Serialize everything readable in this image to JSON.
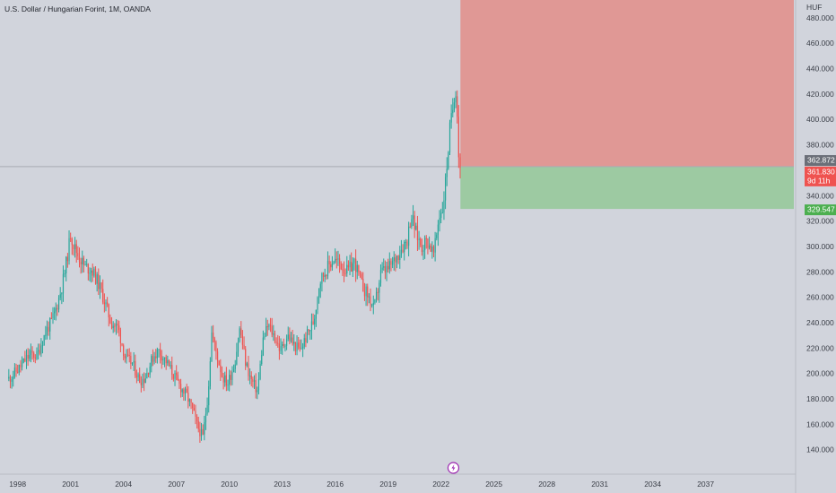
{
  "header": {
    "title": "U.S. Dollar / Hungarian Forint, 1M, OANDA",
    "currency": "HUF"
  },
  "colors": {
    "background": "#d1d4dc",
    "up": "#26a69a",
    "down": "#ef5350",
    "neutral": "#6b6f78",
    "loss_zone": "#e09895",
    "profit_zone": "#9dcaa2",
    "current_line": "#a8abb3",
    "price_tag_bg": "#6b6f78",
    "current_tag_bg": "#ef5350",
    "target_tag_bg": "#4caf50"
  },
  "icons": {
    "event": "lightning-icon"
  },
  "chart_data": {
    "type": "candlestick",
    "symbol": "USD/HUF",
    "interval": "1M",
    "source": "OANDA",
    "ylim": [
      125,
      494
    ],
    "yticks": [
      140,
      160,
      180,
      200,
      220,
      240,
      260,
      280,
      300,
      320,
      340,
      360,
      380,
      400,
      420,
      440,
      460,
      480
    ],
    "ytick_labels": [
      "140.000",
      "160.000",
      "180.000",
      "200.000",
      "220.000",
      "240.000",
      "260.000",
      "280.000",
      "300.000",
      "320.000",
      "340.000",
      "360.000",
      "380.000",
      "400.000",
      "420.000",
      "440.000",
      "460.000",
      "480.000"
    ],
    "xlim": [
      1997.0,
      2042.0
    ],
    "xticks": [
      1998,
      2001,
      2004,
      2007,
      2010,
      2013,
      2016,
      2019,
      2022,
      2025,
      2028,
      2031,
      2034,
      2037
    ],
    "xtick_labels": [
      "1998",
      "2001",
      "2004",
      "2007",
      "2010",
      "2013",
      "2016",
      "2019",
      "2022",
      "2025",
      "2028",
      "2031",
      "2034",
      "2037"
    ],
    "price_path": [
      [
        1997.5,
        196
      ],
      [
        1997.8,
        200
      ],
      [
        1998.2,
        206
      ],
      [
        1998.5,
        212
      ],
      [
        1998.8,
        215
      ],
      [
        1999.1,
        214
      ],
      [
        1999.4,
        226
      ],
      [
        1999.7,
        236
      ],
      [
        1999.9,
        240
      ],
      [
        2000.2,
        252
      ],
      [
        2000.5,
        268
      ],
      [
        2000.7,
        282
      ],
      [
        2000.9,
        300
      ],
      [
        2001.0,
        310
      ],
      [
        2001.2,
        300
      ],
      [
        2001.4,
        294
      ],
      [
        2001.8,
        284
      ],
      [
        2002.2,
        282
      ],
      [
        2002.6,
        270
      ],
      [
        2002.9,
        258
      ],
      [
        2003.3,
        240
      ],
      [
        2003.7,
        236
      ],
      [
        2004.1,
        212
      ],
      [
        2004.5,
        208
      ],
      [
        2004.9,
        195
      ],
      [
        2005.2,
        196
      ],
      [
        2005.7,
        214
      ],
      [
        2006.0,
        218
      ],
      [
        2006.4,
        210
      ],
      [
        2006.8,
        200
      ],
      [
        2007.2,
        190
      ],
      [
        2007.6,
        182
      ],
      [
        2007.9,
        172
      ],
      [
        2008.2,
        158
      ],
      [
        2008.5,
        150
      ],
      [
        2008.8,
        185
      ],
      [
        2009.0,
        232
      ],
      [
        2009.2,
        220
      ],
      [
        2009.6,
        198
      ],
      [
        2009.9,
        192
      ],
      [
        2010.3,
        208
      ],
      [
        2010.6,
        236
      ],
      [
        2010.9,
        210
      ],
      [
        2011.2,
        196
      ],
      [
        2011.6,
        186
      ],
      [
        2011.9,
        226
      ],
      [
        2012.2,
        238
      ],
      [
        2012.6,
        228
      ],
      [
        2012.9,
        218
      ],
      [
        2013.3,
        230
      ],
      [
        2013.7,
        222
      ],
      [
        2014.0,
        218
      ],
      [
        2014.4,
        230
      ],
      [
        2014.8,
        242
      ],
      [
        2015.1,
        272
      ],
      [
        2015.5,
        282
      ],
      [
        2015.9,
        290
      ],
      [
        2016.3,
        286
      ],
      [
        2016.7,
        280
      ],
      [
        2017.1,
        288
      ],
      [
        2017.5,
        270
      ],
      [
        2017.9,
        260
      ],
      [
        2018.2,
        250
      ],
      [
        2018.6,
        280
      ],
      [
        2019.0,
        282
      ],
      [
        2019.4,
        290
      ],
      [
        2019.8,
        300
      ],
      [
        2020.1,
        306
      ],
      [
        2020.3,
        326
      ],
      [
        2020.6,
        310
      ],
      [
        2020.9,
        300
      ],
      [
        2021.2,
        305
      ],
      [
        2021.6,
        294
      ],
      [
        2021.9,
        325
      ],
      [
        2022.1,
        330
      ],
      [
        2022.3,
        358
      ],
      [
        2022.5,
        392
      ],
      [
        2022.7,
        412
      ],
      [
        2022.8,
        428
      ],
      [
        2022.9,
        415
      ],
      [
        2023.0,
        372
      ],
      [
        2023.1,
        362
      ]
    ],
    "seed": 11,
    "current_price": 362.872,
    "last_close": 361.83,
    "target_price": 329.547,
    "countdown": "9d 11h",
    "current_price_label": "362.872",
    "last_close_label": "361.830",
    "target_price_label": "329.547",
    "position": {
      "type": "short",
      "x_start": 2023.1,
      "x_end": 2042.0,
      "entry": 362.872,
      "stop": 494,
      "target": 329.547
    },
    "event_marker": {
      "x": 2022.7,
      "icon": "lightning-icon"
    }
  }
}
